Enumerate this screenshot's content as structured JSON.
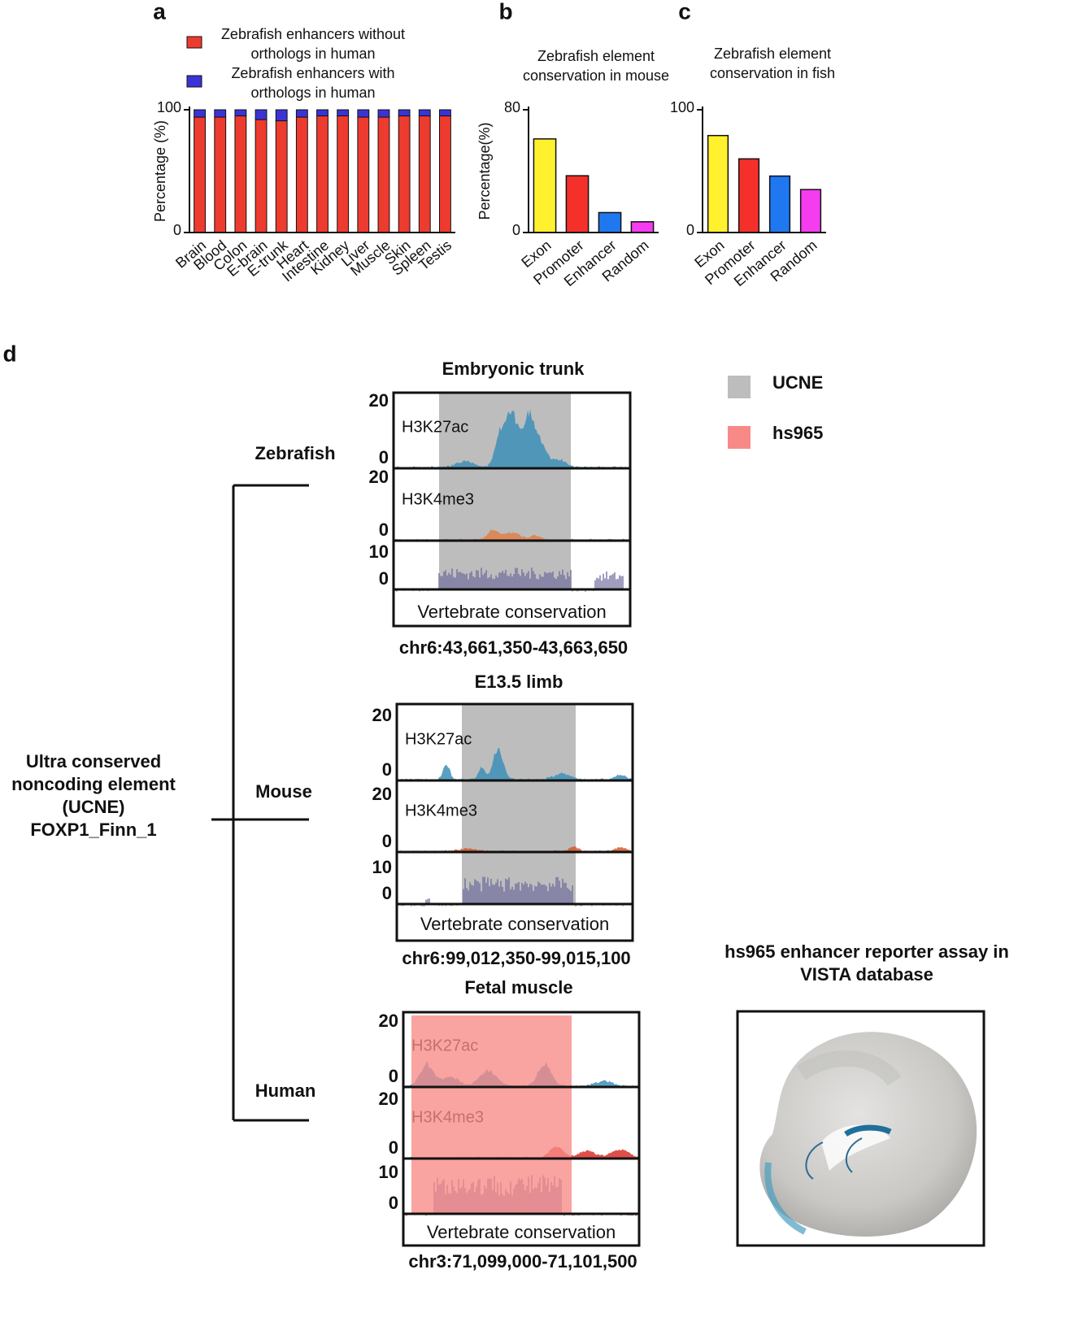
{
  "chart_data": [
    {
      "type": "stacked_bar",
      "panel": "a",
      "categories": [
        "Brain",
        "Blood",
        "Colon",
        "E-brain",
        "E-trunk",
        "Heart",
        "Intestine",
        "Kidney",
        "Liver",
        "Muscle",
        "Skin",
        "Spleen",
        "Testis"
      ],
      "series": [
        {
          "name": "Zebrafish enhancers without orthologs in human",
          "color": "#ee3b2f",
          "values": [
            94,
            94,
            95,
            92,
            91,
            94,
            95,
            95,
            94,
            94,
            95,
            95,
            95
          ]
        },
        {
          "name": "Zebrafish enhancers with orthologs in human",
          "color": "#3a34d6",
          "values": [
            6,
            6,
            5,
            8,
            9,
            6,
            5,
            5,
            6,
            6,
            5,
            5,
            5
          ]
        }
      ],
      "ylim": [
        0,
        100
      ],
      "yticks": [
        0,
        100
      ],
      "y_label": "Percentage (%)"
    },
    {
      "type": "bar",
      "panel": "b",
      "title": "Zebrafish element conservation in mouse",
      "categories": [
        "Exon",
        "Promoter",
        "Enhancer",
        "Random"
      ],
      "values": [
        61,
        37,
        13,
        7
      ],
      "colors": [
        "#fff12e",
        "#f5302a",
        "#1f78f0",
        "#f53cf0"
      ],
      "ylim": [
        0,
        80
      ],
      "yticks": [
        0,
        80
      ],
      "y_label": "Percentage(%)"
    },
    {
      "type": "bar",
      "panel": "c",
      "title": "Zebrafish element conservation in fish",
      "categories": [
        "Exon",
        "Promoter",
        "Enhancer",
        "Random"
      ],
      "values": [
        79,
        60,
        46,
        35
      ],
      "colors": [
        "#fff12e",
        "#f5302a",
        "#1f78f0",
        "#f53cf0"
      ],
      "ylim": [
        0,
        100
      ],
      "yticks": [
        0,
        100
      ]
    }
  ],
  "panel_d": {
    "label": "d",
    "legend": [
      {
        "name": "UCNE",
        "color": "#bdbdbd"
      },
      {
        "name": "hs965",
        "color": "#f78a86"
      }
    ],
    "root_lines": [
      "Ultra conserved",
      "noncoding element",
      "(UCNE)",
      "FOXP1_Finn_1"
    ],
    "species": [
      "Zebrafish",
      "Mouse",
      "Human"
    ],
    "panels": [
      {
        "title": "Embryonic trunk",
        "coords": "chr6:43,661,350-43,663,650",
        "tracks": [
          {
            "name": "H3K27ac",
            "color": "#3d8fb8",
            "range": [
              0,
              20
            ]
          },
          {
            "name": "H3K4me3",
            "color": "#e0804a",
            "range": [
              0,
              20
            ]
          },
          {
            "name": "Vertebrate conservation",
            "color": "#2b3a6b",
            "range": [
              0,
              10
            ]
          }
        ]
      },
      {
        "title": "E13.5 limb",
        "coords": "chr6:99,012,350-99,015,100",
        "tracks": [
          {
            "name": "H3K27ac",
            "color": "#3d8fb8",
            "range": [
              0,
              20
            ]
          },
          {
            "name": "H3K4me3",
            "color": "#d45a2a",
            "range": [
              0,
              20
            ]
          },
          {
            "name": "Vertebrate conservation",
            "color": "#2b3a6b",
            "range": [
              0,
              10
            ]
          }
        ]
      },
      {
        "title": "Fetal muscle",
        "coords": "chr3:71,099,000-71,101,500",
        "tracks": [
          {
            "name": "H3K27ac",
            "color": "#3d8fb8",
            "range": [
              0,
              20
            ]
          },
          {
            "name": "H3K4me3",
            "color": "#d9302a",
            "range": [
              0,
              20
            ]
          },
          {
            "name": "Vertebrate conservation",
            "color": "#2b3a6b",
            "range": [
              0,
              10
            ]
          }
        ]
      }
    ],
    "vista_title_lines": [
      "hs965 enhancer reporter assay in",
      "VISTA database"
    ]
  }
}
